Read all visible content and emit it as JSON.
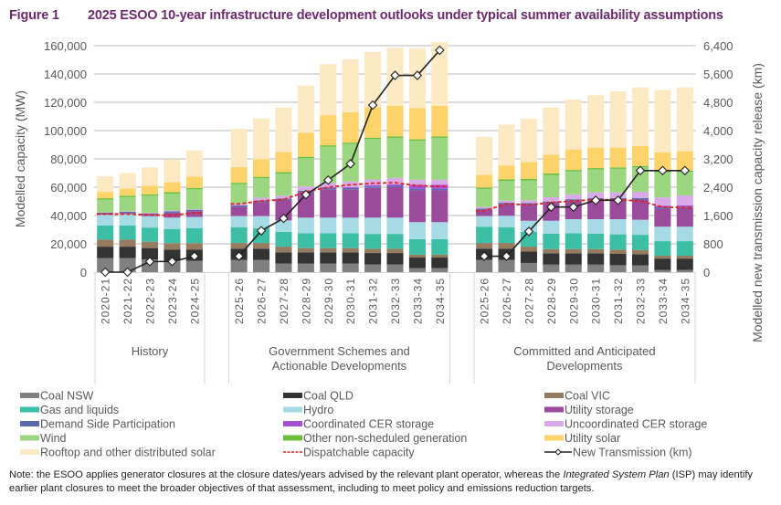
{
  "figure": {
    "number": "Figure 1",
    "title": "2025 ESOO 10-year infrastructure development outlooks under typical summer availability assumptions"
  },
  "note": {
    "prefix": "Note: the ESOO applies generator closures at the closure dates/years advised by the relevant plant operator, whereas the ",
    "italic": "Integrated System Plan",
    "suffix": " (ISP) may identify earlier plant closures to meet the broader objectives of that assessment, including to meet policy and emissions reduction targets."
  },
  "chart_data": {
    "type": "bar",
    "stacked": true,
    "title": "2025 ESOO 10-year infrastructure development outlooks under typical summer availability assumptions",
    "ylabel": "Modelled capacity (MW)",
    "y2label": "Modelled new transmission capacity release (km)",
    "ylim": [
      0,
      160000
    ],
    "y2lim": [
      0,
      6400
    ],
    "yticks": [
      "0",
      "20,000",
      "40,000",
      "60,000",
      "80,000",
      "100,000",
      "120,000",
      "140,000",
      "160,000"
    ],
    "y2ticks": [
      "0",
      "800",
      "1,600",
      "2,400",
      "3,200",
      "4,000",
      "4,800",
      "5,600",
      "6,400"
    ],
    "grid": true,
    "legend_position": "bottom",
    "series": [
      {
        "name": "Coal NSW",
        "color": "#808080",
        "kind": "bar"
      },
      {
        "name": "Coal QLD",
        "color": "#333333",
        "kind": "bar"
      },
      {
        "name": "Coal VIC",
        "color": "#957b5f",
        "kind": "bar"
      },
      {
        "name": "Gas and liquids",
        "color": "#3dbfa5",
        "kind": "bar"
      },
      {
        "name": "Hydro",
        "color": "#a6dbe6",
        "kind": "bar"
      },
      {
        "name": "Utility storage",
        "color": "#9a4b9b",
        "kind": "bar"
      },
      {
        "name": "Demand Side Participation",
        "color": "#5b6bb0",
        "kind": "bar"
      },
      {
        "name": "Coordinated CER storage",
        "color": "#a64fd6",
        "kind": "bar"
      },
      {
        "name": "Uncoordinated CER storage",
        "color": "#d9aae8",
        "kind": "bar"
      },
      {
        "name": "Wind",
        "color": "#9dd680",
        "kind": "bar"
      },
      {
        "name": "Other non-scheduled generation",
        "color": "#6abf3c",
        "kind": "bar"
      },
      {
        "name": "Utility solar",
        "color": "#fdd36a",
        "kind": "bar"
      },
      {
        "name": "Rooftop and other distributed solar",
        "color": "#fde9c4",
        "kind": "bar"
      },
      {
        "name": "Dispatchable capacity",
        "color": "#e0201f",
        "kind": "dashed-line"
      },
      {
        "name": "New Transmission (km)",
        "color": "#222222",
        "kind": "line-marker",
        "axis": "right"
      }
    ],
    "groups": [
      {
        "label": [
          "History"
        ],
        "categories": [
          "2020-21",
          "2021-22",
          "2022-23",
          "2023-24",
          "2024-25"
        ],
        "values": {
          "Coal NSW": [
            10000,
            10000,
            9000,
            8000,
            8000
          ],
          "Coal QLD": [
            8000,
            8000,
            8000,
            8000,
            8000
          ],
          "Coal VIC": [
            5000,
            5000,
            4500,
            4500,
            4500
          ],
          "Gas and liquids": [
            10000,
            10000,
            10000,
            10000,
            10500
          ],
          "Hydro": [
            7500,
            8000,
            8000,
            8000,
            8000
          ],
          "Utility storage": [
            500,
            700,
            1000,
            3500,
            4000
          ],
          "Demand Side Participation": [
            1000,
            1000,
            1000,
            1000,
            1000
          ],
          "Coordinated CER storage": [
            0,
            0,
            0,
            0,
            0
          ],
          "Uncoordinated CER storage": [
            200,
            300,
            500,
            500,
            500
          ],
          "Wind": [
            9000,
            10000,
            12000,
            12000,
            14000
          ],
          "Other non-scheduled generation": [
            1000,
            1000,
            1000,
            1000,
            1000
          ],
          "Utility solar": [
            4500,
            5000,
            6000,
            7000,
            8000
          ],
          "Rooftop and other distributed solar": [
            11000,
            11000,
            13000,
            16000,
            18500
          ],
          "Dispatchable capacity": [
            41000,
            41000,
            40500,
            40000,
            42000
          ],
          "New Transmission (km)": [
            0,
            0,
            300,
            300,
            450
          ]
        }
      },
      {
        "label": [
          "Government Schemes and",
          "Actionable Developments"
        ],
        "categories": [
          "2025-26",
          "2026-27",
          "2027-28",
          "2028-29",
          "2029-30",
          "2030-31",
          "2031-32",
          "2032-33",
          "2033-34",
          "2034-35"
        ],
        "values": {
          "Coal NSW": [
            8600,
            8600,
            6000,
            6000,
            6000,
            6000,
            5500,
            5500,
            2800,
            2800
          ],
          "Coal QLD": [
            8000,
            8000,
            8000,
            8000,
            8000,
            8000,
            8000,
            8000,
            7500,
            7500
          ],
          "Coal VIC": [
            4000,
            4000,
            4000,
            3000,
            3000,
            3000,
            3000,
            3000,
            2000,
            2000
          ],
          "Gas and liquids": [
            11000,
            10500,
            10500,
            10500,
            10500,
            10500,
            10500,
            10500,
            11000,
            11000
          ],
          "Hydro": [
            8000,
            8500,
            8000,
            11000,
            11000,
            11000,
            11500,
            11500,
            12000,
            12000
          ],
          "Utility storage": [
            6500,
            10000,
            14500,
            18000,
            20000,
            20000,
            21000,
            21500,
            22500,
            22500
          ],
          "Demand Side Participation": [
            1000,
            1000,
            1000,
            1000,
            1000,
            1000,
            1000,
            1000,
            1000,
            1000
          ],
          "Coordinated CER storage": [
            0,
            0,
            0,
            0,
            500,
            500,
            1000,
            1000,
            3000,
            3000
          ],
          "Uncoordinated CER storage": [
            1000,
            2000,
            2000,
            3000,
            3000,
            4000,
            4000,
            4500,
            3500,
            3500
          ],
          "Wind": [
            14000,
            13700,
            15700,
            20000,
            25600,
            26500,
            28500,
            28400,
            27500,
            29600
          ],
          "Other non-scheduled generation": [
            1000,
            1000,
            1000,
            1000,
            1000,
            1000,
            1000,
            1000,
            1000,
            1000
          ],
          "Utility solar": [
            11200,
            12400,
            14100,
            17000,
            21300,
            21400,
            21600,
            21700,
            22000,
            21600
          ],
          "Rooftop and other distributed solar": [
            27000,
            28800,
            31600,
            33300,
            36000,
            37500,
            39000,
            40800,
            42500,
            45000
          ],
          "Dispatchable capacity": [
            48200,
            50300,
            51300,
            56800,
            60000,
            61700,
            62800,
            63200,
            61100,
            60600
          ],
          "New Transmission (km)": [
            450,
            1170,
            1520,
            2190,
            2600,
            3060,
            4720,
            5560,
            5560,
            6270
          ]
        }
      },
      {
        "label": [
          "Committed and Anticipated",
          "Developments"
        ],
        "categories": [
          "2025-26",
          "2026-27",
          "2027-28",
          "2028-29",
          "2029-30",
          "2030-31",
          "2031-32",
          "2032-33",
          "2033-34",
          "2034-35"
        ],
        "values": {
          "Coal NSW": [
            8600,
            8600,
            6500,
            5300,
            5300,
            5300,
            4900,
            4700,
            1600,
            1600
          ],
          "Coal QLD": [
            8000,
            8000,
            8000,
            8000,
            8000,
            8000,
            8000,
            8000,
            8000,
            8000
          ],
          "Coal VIC": [
            4000,
            4000,
            3500,
            3000,
            3000,
            3000,
            3000,
            3000,
            2000,
            2000
          ],
          "Gas and liquids": [
            11500,
            11000,
            10400,
            10800,
            11200,
            10800,
            10800,
            10700,
            10300,
            10300
          ],
          "Hydro": [
            7500,
            8200,
            7900,
            9200,
            9900,
            10300,
            10700,
            10600,
            10200,
            10200
          ],
          "Utility storage": [
            4400,
            8200,
            11500,
            12600,
            13100,
            13900,
            13900,
            14300,
            12700,
            13100
          ],
          "Demand Side Participation": [
            1000,
            1000,
            1000,
            1000,
            1000,
            1000,
            1000,
            1000,
            1000,
            1000
          ],
          "Coordinated CER storage": [
            0,
            0,
            0,
            0,
            0,
            0,
            0,
            0,
            1000,
            1000
          ],
          "Uncoordinated CER storage": [
            1000,
            1500,
            2000,
            3000,
            3500,
            4000,
            4000,
            4500,
            6000,
            7000
          ],
          "Wind": [
            12800,
            14000,
            14000,
            15800,
            16200,
            16200,
            16700,
            17200,
            17900,
            16600
          ],
          "Other non-scheduled generation": [
            1000,
            1000,
            1000,
            1000,
            1000,
            1000,
            1000,
            1000,
            1000,
            1000
          ],
          "Utility solar": [
            8900,
            9800,
            11900,
            13300,
            14500,
            14500,
            14000,
            14100,
            13000,
            13600
          ],
          "Rooftop and other distributed solar": [
            26800,
            29000,
            30700,
            33400,
            35300,
            37000,
            39800,
            41500,
            44000,
            45200
          ],
          "Dispatchable capacity": [
            43400,
            48200,
            47500,
            49200,
            50300,
            51200,
            51200,
            50300,
            46000,
            45600
          ],
          "New Transmission (km)": [
            450,
            450,
            1150,
            1840,
            1840,
            2030,
            2030,
            2870,
            2870,
            2870
          ]
        }
      }
    ]
  }
}
